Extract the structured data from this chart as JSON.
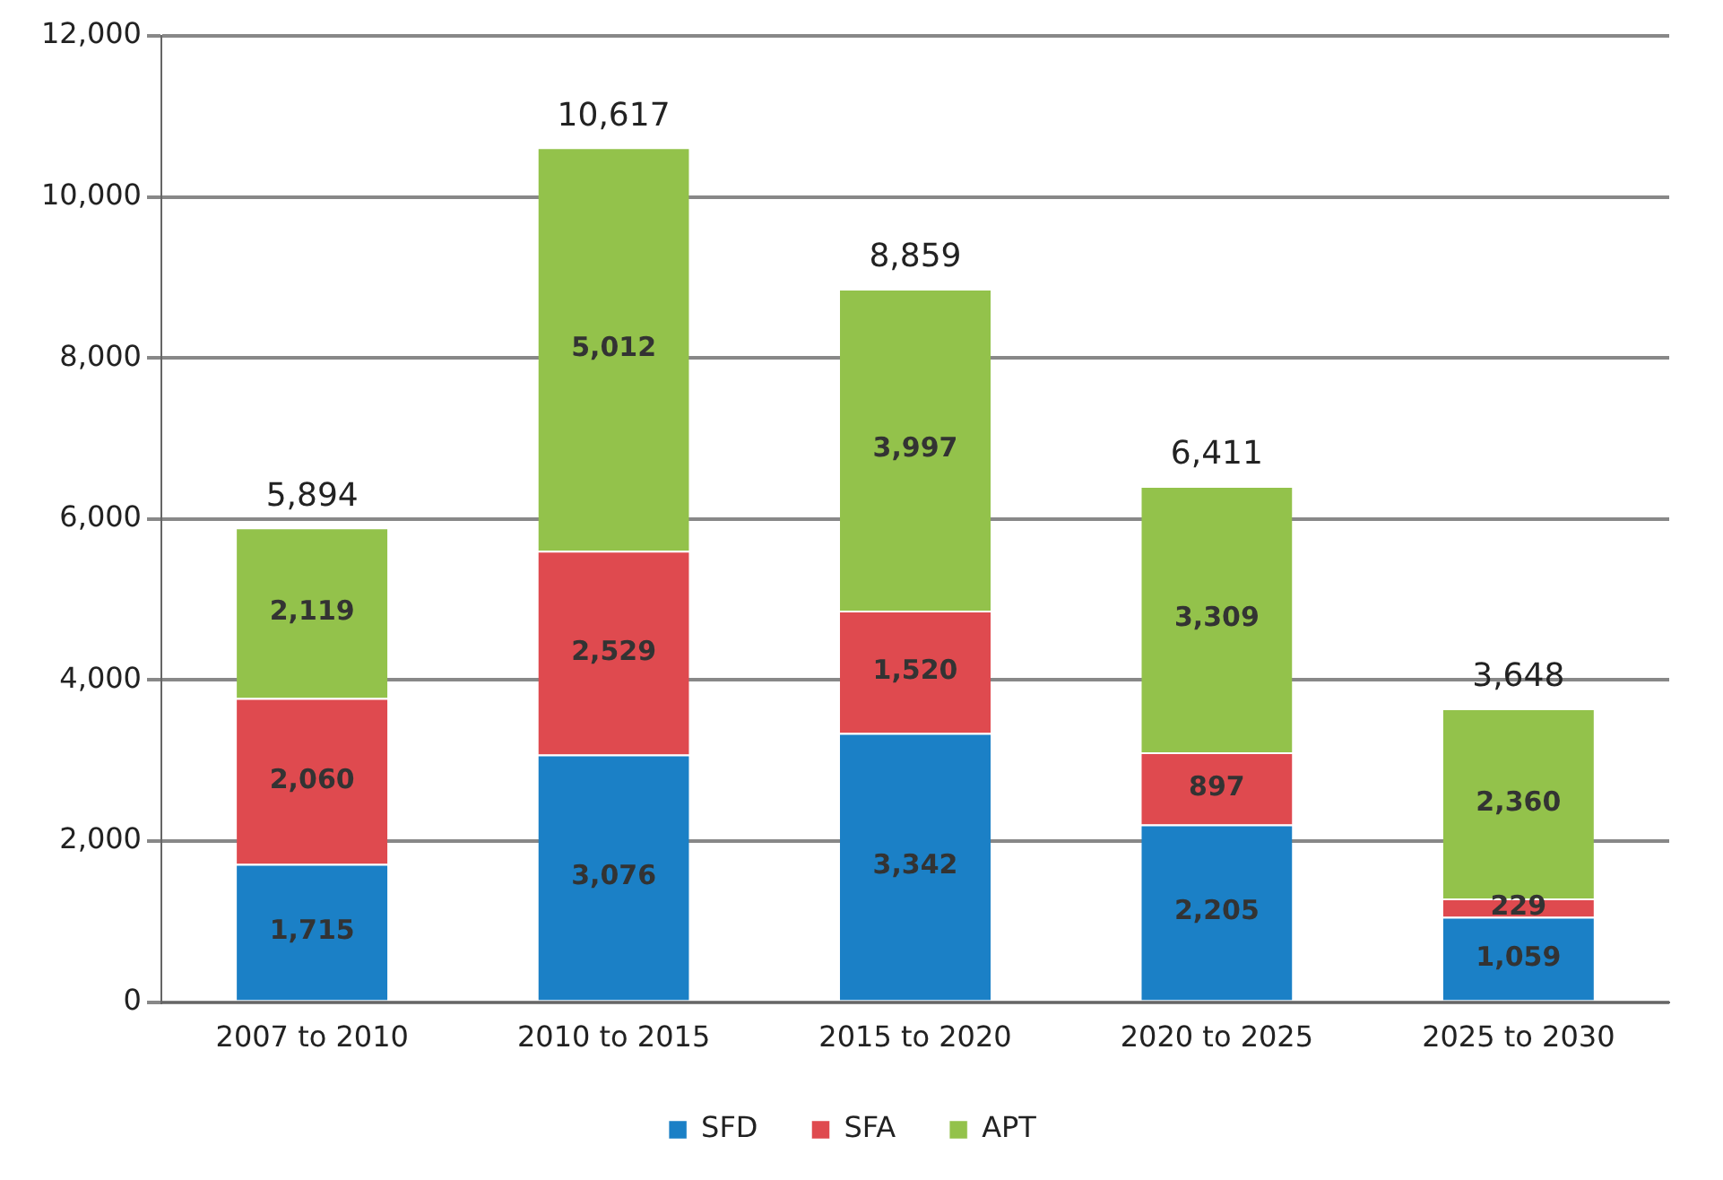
{
  "chart_data": {
    "type": "bar",
    "stacked": true,
    "categories": [
      "2007 to 2010",
      "2010 to 2015",
      "2015 to 2020",
      "2020 to 2025",
      "2025 to 2030"
    ],
    "series": [
      {
        "name": "SFD",
        "color": "#1b80c6",
        "values": [
          1715,
          3076,
          3342,
          2205,
          1059
        ],
        "value_labels": [
          "1,715",
          "3,076",
          "3,342",
          "2,205",
          "1,059"
        ]
      },
      {
        "name": "SFA",
        "color": "#df4a4f",
        "values": [
          2060,
          2529,
          1520,
          897,
          229
        ],
        "value_labels": [
          "2,060",
          "2,529",
          "1,520",
          "897",
          "229"
        ]
      },
      {
        "name": "APT",
        "color": "#93c24b",
        "values": [
          2119,
          5012,
          3997,
          3309,
          2360
        ],
        "value_labels": [
          "2,119",
          "5,012",
          "3,997",
          "3,309",
          "2,360"
        ]
      }
    ],
    "totals": [
      "5,894",
      "10,617",
      "8,859",
      "6,411",
      "3,648"
    ],
    "ylim": [
      0,
      12000
    ],
    "yticks": [
      {
        "value": 0,
        "label": "0"
      },
      {
        "value": 2000,
        "label": "2,000"
      },
      {
        "value": 4000,
        "label": "4,000"
      },
      {
        "value": 6000,
        "label": "6,000"
      },
      {
        "value": 8000,
        "label": "8,000"
      },
      {
        "value": 10000,
        "label": "10,000"
      },
      {
        "value": 12000,
        "label": "12,000"
      }
    ],
    "grid": "y",
    "legend": "bottom"
  }
}
